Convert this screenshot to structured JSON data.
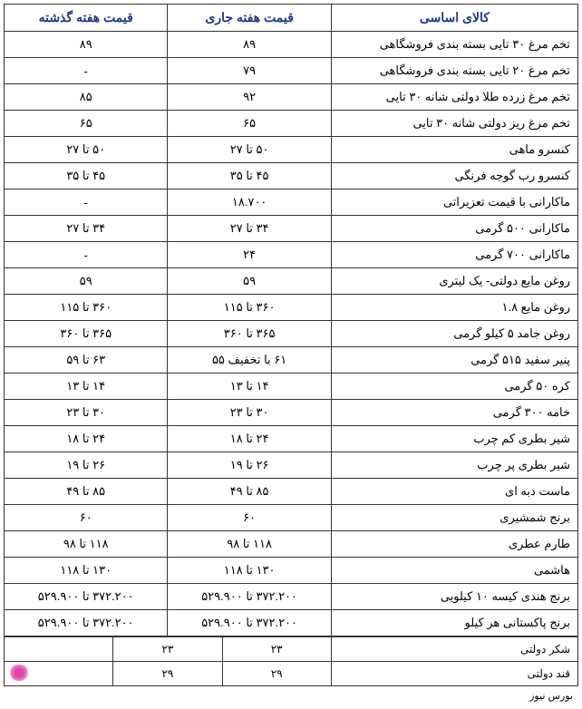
{
  "headers": {
    "item": "کالای اساسی",
    "current_week": "قیمت هفته جاری",
    "last_week": "قیمت هفته گذشته"
  },
  "rows": [
    {
      "item": "تخم مرغ ۳۰ تایی بسته بندی فروشگاهی",
      "current": "۸۹",
      "last": "۸۹"
    },
    {
      "item": "تخم مرغ ۲۰ تایی بسته بندی فروشگاهی",
      "current": "۷۹",
      "last": "-"
    },
    {
      "item": "تخم مرغ زرده طلا دولتی شانه ۳۰ تایی",
      "current": "۹۲",
      "last": "۸۵"
    },
    {
      "item": "تخم مرغ ریز دولتی شانه ۳۰ تایی",
      "current": "۶۵",
      "last": "۶۵"
    },
    {
      "item": "کنسرو ماهی",
      "current": "۵۰ تا ۲۷",
      "last": "۵۰ تا ۲۷"
    },
    {
      "item": "کنسرو رب گوجه فرنگی",
      "current": "۴۵ تا ۳۵",
      "last": "۴۵ تا ۳۵"
    },
    {
      "item": "ماکارانی با قیمت تعزیراتی",
      "current": "۱۸.۷۰۰",
      "last": "-"
    },
    {
      "item": "ماکارانی ۵۰۰ گرمی",
      "current": "۳۴ تا ۲۷",
      "last": "۳۴ تا ۲۷"
    },
    {
      "item": "ماکارانی ۷۰۰ گرمی",
      "current": "۲۴",
      "last": "-"
    },
    {
      "item": "روغن مایع دولتی- یک لیتری",
      "current": "۵۹",
      "last": "۵۹"
    },
    {
      "item": "روغن مایع ۱.۸",
      "current": "۳۶۰ تا ۱۱۵",
      "last": "۳۶۰ تا ۱۱۵"
    },
    {
      "item": "روغن جامد ۵ کیلو گرمی",
      "current": "۳۶۵ تا ۳۶۰",
      "last": "۳۶۵ تا ۳۶۰"
    },
    {
      "item": "پنیر سفید ۵۱۵ گرمی",
      "current": "۶۱ با تخفیف ۵۵",
      "last": "۶۳ تا ۵۹"
    },
    {
      "item": "کره ۵۰ گرمی",
      "current": "۱۴ تا ۱۳",
      "last": "۱۴ تا ۱۳"
    },
    {
      "item": "خامه ۳۰۰ گرمی",
      "current": "۳۰ تا ۲۳",
      "last": "۳۰ تا ۲۳"
    },
    {
      "item": "شیر بطری کم چرب",
      "current": "۲۴ تا ۱۸",
      "last": "۲۴ تا ۱۸"
    },
    {
      "item": "شیر بطری پر چرب",
      "current": "۲۶ تا ۱۹",
      "last": "۲۶ تا ۱۹"
    },
    {
      "item": "ماست دبه ای",
      "current": "۸۵ تا ۴۹",
      "last": "۸۵ تا ۴۹"
    },
    {
      "item": "برنج شمشیری",
      "current": "۶۰",
      "last": "۶۰"
    },
    {
      "item": "طارم عطری",
      "current": "۱۱۸ تا ۹۸",
      "last": "۱۱۸ تا ۹۸"
    },
    {
      "item": "هاشمی",
      "current": "۱۳۰ تا ۱۱۸",
      "last": "۱۳۰ تا ۱۱۸"
    },
    {
      "item": "برنج هندی کیسه ۱۰ کیلویی",
      "current": "۳۷۲.۲۰۰ تا ۵۲۹.۹۰۰",
      "last": "۳۷۲.۲۰۰ تا ۵۲۹.۹۰۰"
    }
  ],
  "pakistani_rice": {
    "item": "برنج پاکستانی هر کیلو",
    "current": "۳۷۲.۲۰۰ تا ۵۲۹.۹۰۰",
    "last": "۳۷۲.۲۰۰ تا ۵۲۹.۹۰۰"
  },
  "sugar_row": {
    "item": "شکر دولتی",
    "val1": "۲۳",
    "val2": "۲۳",
    "val3": ""
  },
  "gand_row": {
    "item": "قند دولتی",
    "val1": "۲۹",
    "val2": "۲۹"
  },
  "source": "بورس نیوز",
  "colors": {
    "header_text": "#1a3a8a",
    "border": "#333333",
    "background": "#ffffff"
  }
}
